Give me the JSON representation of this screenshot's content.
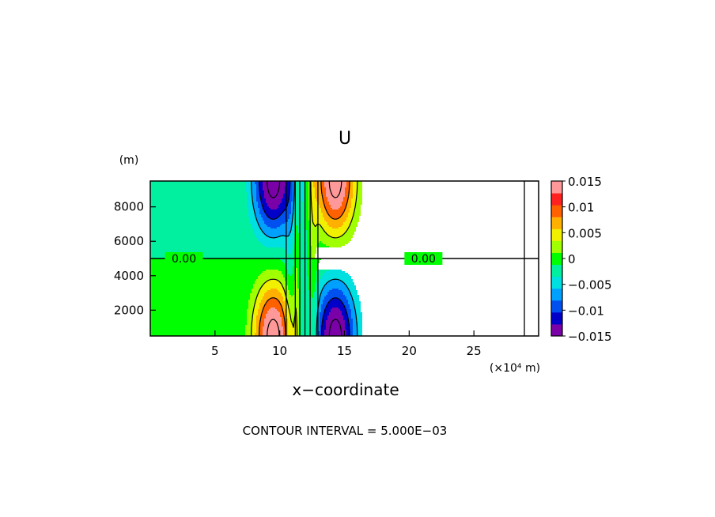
{
  "chart_data": {
    "type": "heatmap",
    "title": "U",
    "xlabel": "x−coordinate",
    "x_unit": "(×10⁴ m)",
    "y_unit": "(m)",
    "xlim": [
      0,
      30
    ],
    "ylim": [
      500,
      9500
    ],
    "x_ticks": [
      5,
      10,
      15,
      20,
      25
    ],
    "y_ticks": [
      2000,
      4000,
      6000,
      8000
    ],
    "x_tick_labels": [
      "5",
      "10",
      "15",
      "20",
      "25"
    ],
    "y_tick_labels": [
      "2000",
      "4000",
      "6000",
      "8000"
    ],
    "zero_contour_labels": [
      "0.00",
      "0.00"
    ],
    "zero_contour_label_x": [
      2.6,
      21.1
    ],
    "zero_contour_y": 5000,
    "footer": "CONTOUR INTERVAL = 5.000E−03",
    "contour_interval": 0.005,
    "colorbar": {
      "levels": [
        -0.015,
        -0.0125,
        -0.01,
        -0.0075,
        -0.005,
        -0.0025,
        0,
        0.0025,
        0.005,
        0.0075,
        0.01,
        0.0125,
        0.015
      ],
      "colors": [
        "#7a00a8",
        "#0000c8",
        "#0050f0",
        "#00a0ff",
        "#00e0e0",
        "#00f0a0",
        "#00ff00",
        "#a0ff00",
        "#f0f000",
        "#ffb000",
        "#ff6000",
        "#ff2020",
        "#ff9898"
      ],
      "tick_values": [
        0.015,
        0.01,
        0.005,
        0,
        -0.005,
        -0.01,
        -0.015
      ],
      "tick_labels": [
        "0.015",
        "0.01",
        "0.005",
        "0",
        "−0.005",
        "−0.01",
        "−0.015"
      ]
    },
    "anomalies": [
      {
        "x_center": 9.5,
        "y_center": 9500,
        "amplitude": -0.0165
      },
      {
        "x_center": 9.5,
        "y_center": 500,
        "amplitude": 0.0165
      },
      {
        "x_center": 14.3,
        "y_center": 9500,
        "amplitude": 0.0165
      },
      {
        "x_center": 14.3,
        "y_center": 500,
        "amplitude": -0.0165
      }
    ],
    "anomaly_x_width": 1.55,
    "anomaly_y_width": 3200,
    "strips": [
      {
        "x": 10.75,
        "width": 0.45,
        "amplitude": -0.002
      },
      {
        "x": 11.3,
        "width": 0.2,
        "amplitude": 0.0025
      },
      {
        "x": 11.75,
        "width": 0.25,
        "amplitude": -0.002
      },
      {
        "x": 12.6,
        "width": 0.35,
        "amplitude": 0.0026
      }
    ],
    "vertical_zero_lines_x": [
      10.5,
      11.2,
      11.55,
      11.95,
      12.35,
      12.95,
      28.9
    ]
  }
}
